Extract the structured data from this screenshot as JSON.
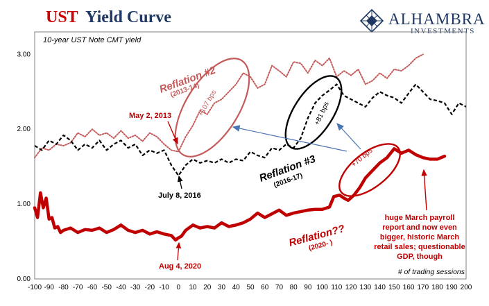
{
  "header": {
    "title_ust": "UST",
    "title_rest": "Yield Curve",
    "subtitle": "10-year UST Note CMT yield"
  },
  "logo": {
    "name": "ALHAMBRA",
    "sub": "INVESTMENTS",
    "icon": "diamond-lattice-icon"
  },
  "annotations": {
    "reflation2": "Reflation #2",
    "reflation2_years": "(2013-14)",
    "reflation2_bps": "+107 bps",
    "may2013": "May 2, 2013",
    "reflation3": "Reflation #3",
    "reflation3_years": "(2016-17)",
    "reflation3_bps": "+81 bps",
    "july2016": "July 8, 2016",
    "reflation_now": "Reflation??",
    "reflation_now_years": "(2020- )",
    "reflation_now_bps": "+70 bps",
    "aug2020": "Aug 4, 2020",
    "march_note": [
      "huge March payroll",
      "report and now even",
      "bigger, historic March",
      "retail sales; questionable",
      "GDP, though"
    ]
  },
  "chart_data": {
    "type": "line",
    "x_axis_note": "# of trading sessions",
    "xlim": [
      -100,
      200
    ],
    "ylim": [
      0.0,
      3.3
    ],
    "xticks": [
      "-100",
      "-90",
      "-80",
      "-70",
      "-60",
      "-50",
      "-40",
      "-30",
      "-20",
      "-10",
      "0",
      "10",
      "20",
      "30",
      "40",
      "50",
      "60",
      "70",
      "80",
      "90",
      "100",
      "110",
      "120",
      "130",
      "140",
      "150",
      "160",
      "170",
      "180",
      "190",
      "200"
    ],
    "yticks": [
      "0.00",
      "1.00",
      "2.00",
      "3.00"
    ],
    "colors": {
      "r2013": "#c55a5a",
      "r2016": "#000000",
      "r2020": "#c00000",
      "arrow": "#4a74b4"
    },
    "series": [
      {
        "key": "r2013",
        "style": "dotted",
        "x": [
          -100,
          -95,
          -90,
          -85,
          -80,
          -75,
          -70,
          -65,
          -60,
          -55,
          -50,
          -45,
          -40,
          -35,
          -30,
          -25,
          -20,
          -15,
          -10,
          -5,
          0,
          5,
          10,
          15,
          20,
          25,
          30,
          35,
          40,
          45,
          50,
          55,
          60,
          65,
          70,
          75,
          80,
          85,
          90,
          95,
          100,
          105,
          110,
          115,
          120,
          125,
          130,
          135,
          140,
          145,
          150,
          155,
          160,
          165,
          170
        ],
        "values": [
          1.62,
          1.75,
          1.72,
          1.8,
          1.78,
          1.82,
          1.95,
          1.9,
          2.0,
          1.92,
          1.95,
          1.88,
          1.98,
          1.88,
          1.92,
          1.84,
          1.95,
          1.9,
          1.8,
          1.72,
          1.7,
          1.9,
          2.05,
          2.25,
          2.2,
          2.35,
          2.4,
          2.5,
          2.6,
          2.75,
          2.7,
          2.55,
          2.6,
          2.85,
          2.78,
          2.7,
          2.9,
          2.88,
          2.75,
          2.92,
          2.85,
          2.95,
          2.7,
          2.78,
          2.72,
          2.8,
          2.6,
          2.65,
          2.75,
          2.68,
          2.8,
          2.78,
          2.85,
          2.95,
          3.0
        ]
      },
      {
        "key": "r2016",
        "style": "dashed",
        "x": [
          -100,
          -95,
          -90,
          -85,
          -80,
          -75,
          -70,
          -65,
          -60,
          -55,
          -50,
          -45,
          -40,
          -35,
          -30,
          -25,
          -20,
          -15,
          -10,
          -5,
          0,
          5,
          10,
          15,
          20,
          25,
          30,
          35,
          40,
          45,
          50,
          55,
          60,
          65,
          70,
          75,
          80,
          85,
          90,
          95,
          100,
          105,
          110,
          115,
          120,
          125,
          130,
          135,
          140,
          145,
          150,
          155,
          160,
          165,
          170,
          175,
          180,
          185,
          190,
          195,
          200
        ],
        "values": [
          1.78,
          1.72,
          1.85,
          1.8,
          1.92,
          1.85,
          1.72,
          1.8,
          1.75,
          1.85,
          1.72,
          1.8,
          1.85,
          1.75,
          1.8,
          1.65,
          1.72,
          1.68,
          1.72,
          1.52,
          1.38,
          1.52,
          1.6,
          1.55,
          1.58,
          1.55,
          1.6,
          1.55,
          1.6,
          1.58,
          1.7,
          1.65,
          1.62,
          1.75,
          1.72,
          1.8,
          1.75,
          1.88,
          2.15,
          2.35,
          2.45,
          2.52,
          2.6,
          2.45,
          2.4,
          2.35,
          2.3,
          2.42,
          2.5,
          2.45,
          2.42,
          2.35,
          2.48,
          2.6,
          2.5,
          2.4,
          2.38,
          2.35,
          2.2,
          2.35,
          2.3
        ]
      },
      {
        "key": "r2020",
        "style": "solid",
        "x": [
          -100,
          -98,
          -96,
          -94,
          -92,
          -90,
          -88,
          -86,
          -84,
          -82,
          -80,
          -75,
          -70,
          -65,
          -60,
          -55,
          -50,
          -45,
          -40,
          -35,
          -30,
          -25,
          -20,
          -15,
          -10,
          -5,
          -2,
          0,
          2,
          5,
          10,
          15,
          20,
          25,
          30,
          35,
          40,
          45,
          50,
          55,
          60,
          65,
          70,
          75,
          80,
          85,
          90,
          95,
          100,
          105,
          108,
          112,
          115,
          118,
          122,
          126,
          130,
          135,
          140,
          145,
          150,
          155,
          160,
          165,
          170,
          175,
          180,
          185
        ],
        "values": [
          0.95,
          0.82,
          1.15,
          0.95,
          1.08,
          0.8,
          0.82,
          0.68,
          0.7,
          0.62,
          0.65,
          0.68,
          0.62,
          0.66,
          0.65,
          0.68,
          0.62,
          0.66,
          0.72,
          0.65,
          0.62,
          0.65,
          0.6,
          0.63,
          0.6,
          0.58,
          0.52,
          0.55,
          0.57,
          0.65,
          0.72,
          0.68,
          0.7,
          0.68,
          0.75,
          0.7,
          0.72,
          0.75,
          0.8,
          0.88,
          0.82,
          0.87,
          0.92,
          0.85,
          0.88,
          0.9,
          0.92,
          0.93,
          0.93,
          0.96,
          1.1,
          1.12,
          1.08,
          1.05,
          1.12,
          1.22,
          1.35,
          1.45,
          1.55,
          1.62,
          1.74,
          1.68,
          1.72,
          1.66,
          1.62,
          1.6,
          1.6,
          1.64
        ]
      }
    ]
  }
}
